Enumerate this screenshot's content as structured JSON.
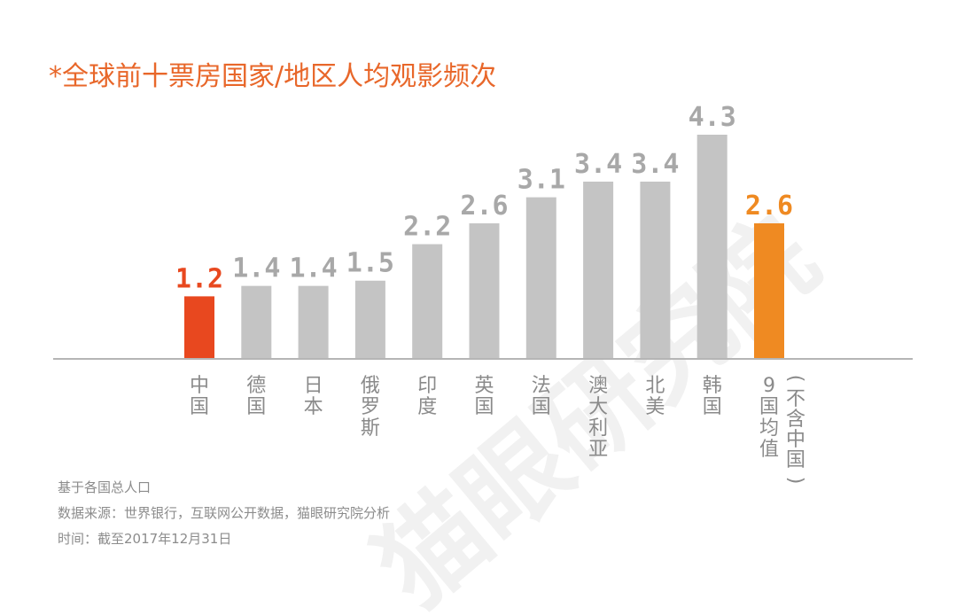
{
  "chart_data": {
    "type": "bar",
    "title": "*全球前十票房国家/地区人均观影频次",
    "categories": [
      "中国",
      "德国",
      "日本",
      "俄罗斯",
      "印度",
      "英国",
      "法国",
      "澳大利亚",
      "北美",
      "韩国",
      "9国均值"
    ],
    "category_notes": [
      "",
      "",
      "",
      "",
      "",
      "",
      "",
      "",
      "",
      "",
      "(不含中国)"
    ],
    "values": [
      1.2,
      1.4,
      1.4,
      1.5,
      2.2,
      2.6,
      3.1,
      3.4,
      3.4,
      4.3,
      2.6
    ],
    "value_labels": [
      "1.2",
      "1.4",
      "1.4",
      "1.5",
      "2.2",
      "2.6",
      "3.1",
      "3.4",
      "3.4",
      "4.3",
      "2.6"
    ],
    "highlight": {
      "0": "#e8481f",
      "10": "#ef8a22"
    },
    "ylim": [
      0,
      4.3
    ],
    "grid": false,
    "legend": "none"
  },
  "colors": {
    "title": "#e8672a",
    "bar_default": "#c4c4c4",
    "label_default": "#a8a8a8",
    "category_text": "#8a8a8a",
    "axis": "#b5b5b5",
    "note_text": "#8c8c8c",
    "watermark": "#f1f1f1"
  },
  "notes": [
    "基于各国总人口",
    "数据来源：世界银行，互联网公开数据，猫眼研究院分析",
    "时间：截至2017年12月31日"
  ],
  "watermark": "猫眼研究院"
}
